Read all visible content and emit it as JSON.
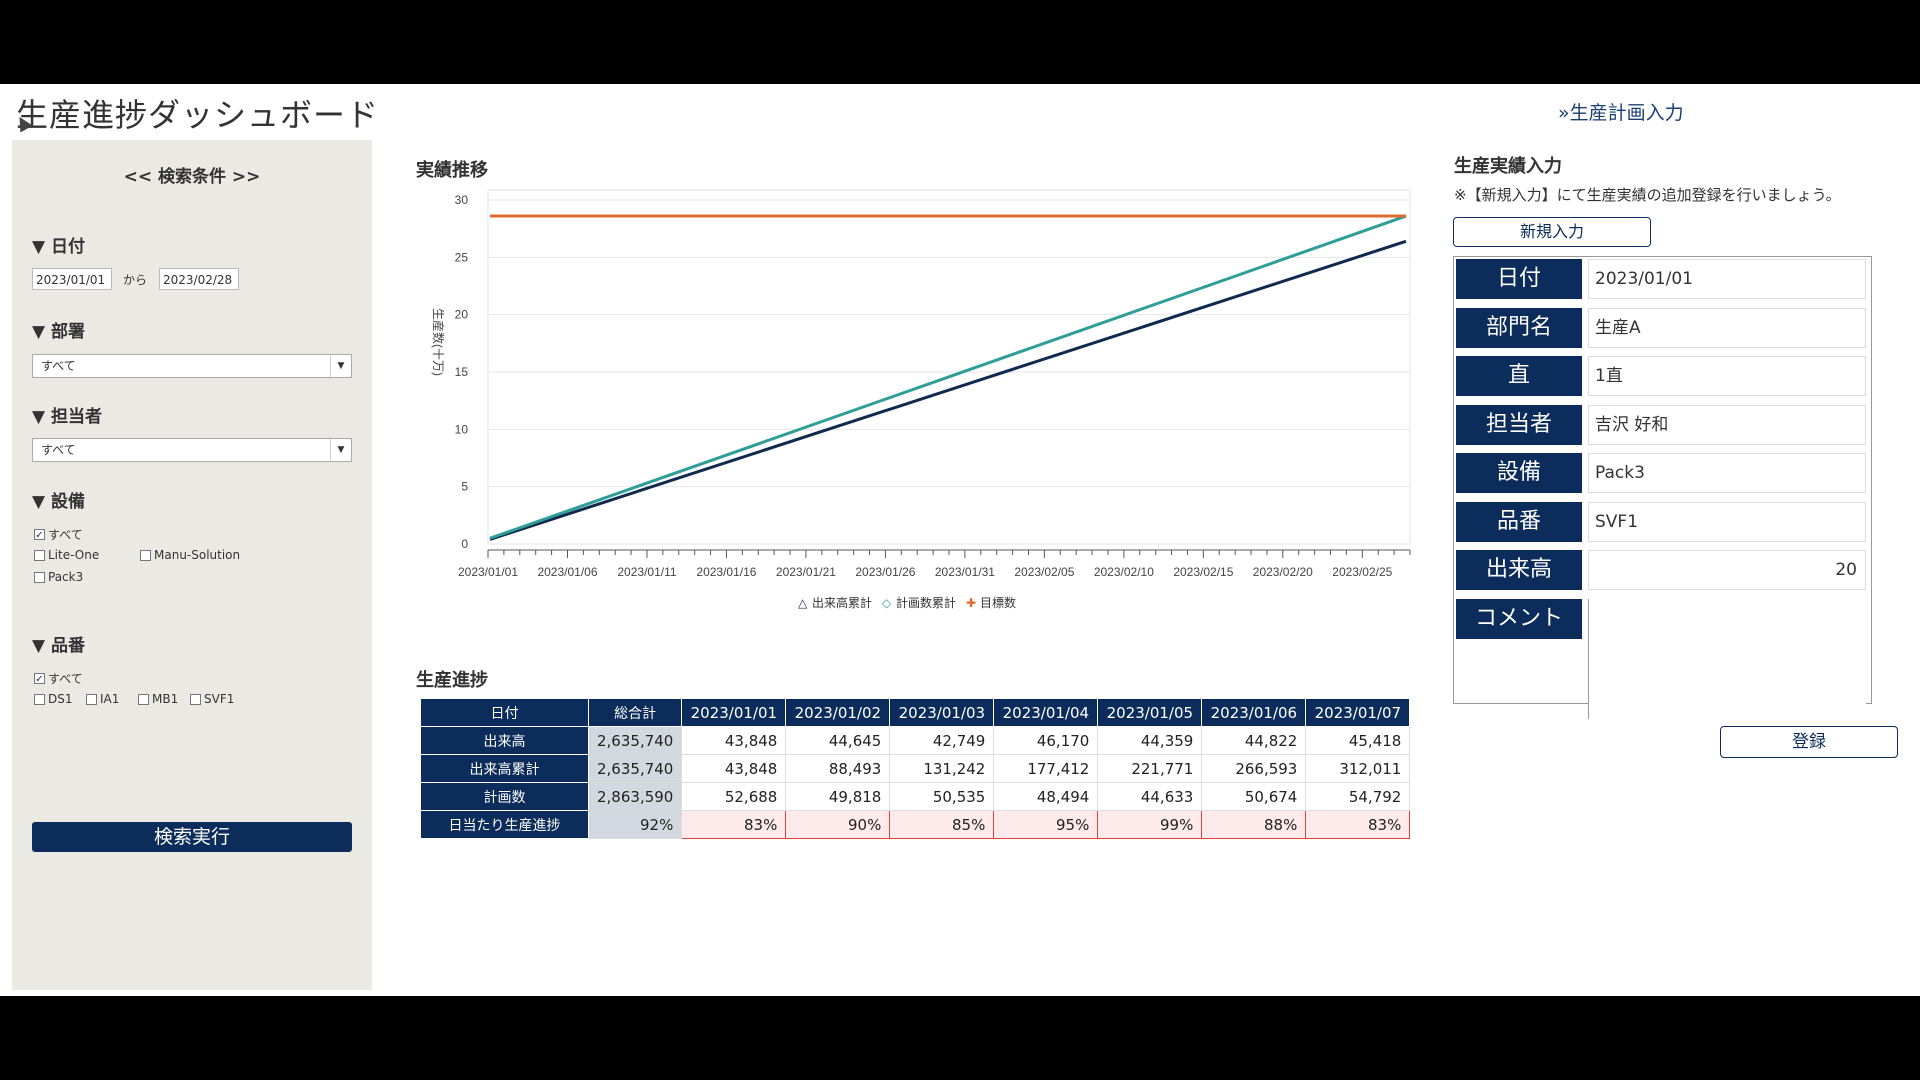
{
  "header": {
    "title": "生産進捗ダッシュボード",
    "link": "»生産計画入力"
  },
  "sidebar": {
    "heading": "<< 検索条件 >>",
    "date": {
      "title": "▼ 日付",
      "from": "2023/01/01",
      "sep": "から",
      "to": "2023/02/28"
    },
    "dept": {
      "title": "▼ 部署",
      "value": "すべて"
    },
    "person": {
      "title": "▼ 担当者",
      "value": "すべて"
    },
    "equip": {
      "title": "▼ 設備",
      "items": [
        "すべて",
        "Lite-One",
        "Manu-Solution",
        "Pack3"
      ],
      "checked": [
        "すべて"
      ]
    },
    "part": {
      "title": "▼ 品番",
      "items": [
        "すべて",
        "DS1",
        "IA1",
        "MB1",
        "SVF1"
      ],
      "checked": [
        "すべて"
      ]
    },
    "search_button": "検索実行"
  },
  "chart_section_title": "実績推移",
  "chart_data": {
    "type": "line",
    "ylabel": "生産数(十万)",
    "ylim": [
      0,
      30
    ],
    "yticks": [
      0,
      5,
      10,
      15,
      20,
      25,
      30
    ],
    "x_tick_labels": [
      "2023/01/01",
      "2023/01/06",
      "2023/01/11",
      "2023/01/16",
      "2023/01/21",
      "2023/01/26",
      "2023/01/31",
      "2023/02/05",
      "2023/02/10",
      "2023/02/15",
      "2023/02/20",
      "2023/02/25"
    ],
    "x_start": "2023/01/01",
    "x_end": "2023/02/28",
    "series": [
      {
        "name": "出来高累計",
        "marker": "△",
        "color": "#0f2a4e",
        "start": 0.4,
        "end": 26.4
      },
      {
        "name": "計画数累計",
        "marker": "◇",
        "color": "#2e9e97",
        "start": 0.5,
        "end": 28.6
      },
      {
        "name": "目標数",
        "marker": "✚",
        "color": "#e06a2c",
        "start": 28.6,
        "end": 28.6
      }
    ]
  },
  "progress": {
    "title": "生産進捗",
    "header": [
      "日付",
      "総合計",
      "2023/01/01",
      "2023/01/02",
      "2023/01/03",
      "2023/01/04",
      "2023/01/05",
      "2023/01/06",
      "2023/01/07"
    ],
    "rows": [
      [
        "出来高",
        "2,635,740",
        "43,848",
        "44,645",
        "42,749",
        "46,170",
        "44,359",
        "44,822",
        "45,418"
      ],
      [
        "出来高累計",
        "2,635,740",
        "43,848",
        "88,493",
        "131,242",
        "177,412",
        "221,771",
        "266,593",
        "312,011"
      ],
      [
        "計画数",
        "2,863,590",
        "52,688",
        "49,818",
        "50,535",
        "48,494",
        "44,633",
        "50,674",
        "54,792"
      ],
      [
        "日当たり生産進捗",
        "92%",
        "83%",
        "90%",
        "85%",
        "95%",
        "99%",
        "88%",
        "83%"
      ]
    ]
  },
  "entry": {
    "title": "生産実績入力",
    "note": "※【新規入力】にて生産実績の追加登録を行いましょう。",
    "new_button": "新規入力",
    "fields": [
      {
        "label": "日付",
        "value": "2023/01/01"
      },
      {
        "label": "部門名",
        "value": "生産A"
      },
      {
        "label": "直",
        "value": "1直"
      },
      {
        "label": "担当者",
        "value": "吉沢 好和"
      },
      {
        "label": "設備",
        "value": "Pack3"
      },
      {
        "label": "品番",
        "value": "SVF1"
      },
      {
        "label": "出来高",
        "value": "20"
      },
      {
        "label": "コメント",
        "value": ""
      }
    ],
    "register_button": "登録"
  }
}
